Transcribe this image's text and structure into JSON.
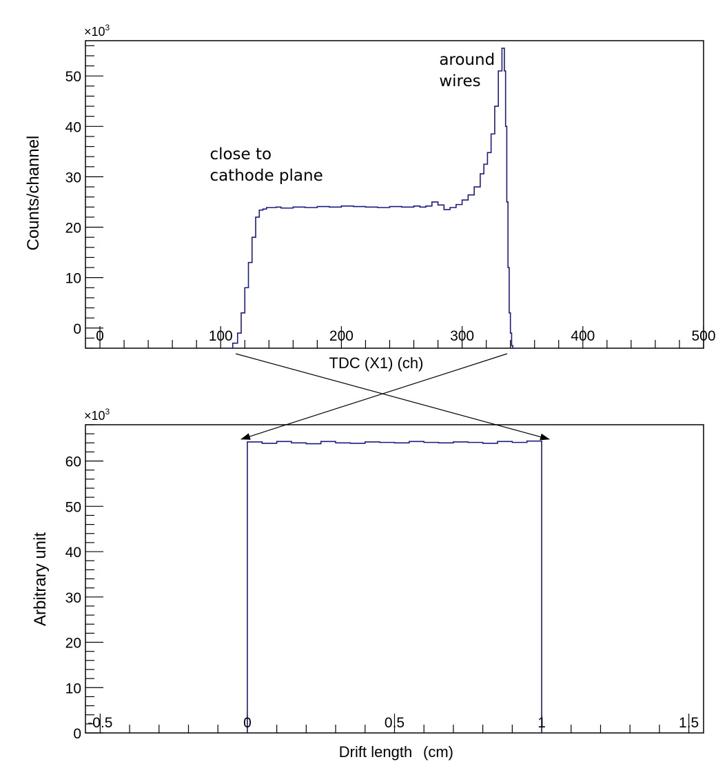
{
  "chart_data": [
    {
      "type": "histogram",
      "xlabel": "TDC (X1) (ch)",
      "ylabel": "Counts/channel",
      "y_multiplier": "×10",
      "y_multiplier_exp": "3",
      "xlim": [
        -12,
        500
      ],
      "ylim": [
        -4,
        57
      ],
      "x_ticks": [
        "0",
        "100",
        "200",
        "300",
        "400",
        "500"
      ],
      "x_tick_values": [
        0,
        100,
        200,
        300,
        400,
        500
      ],
      "y_ticks": [
        "0",
        "10",
        "20",
        "30",
        "40",
        "50"
      ],
      "y_tick_values": [
        0,
        10,
        20,
        30,
        40,
        50
      ],
      "annotations": [
        {
          "lines": [
            "close to",
            "cathode plane"
          ],
          "x": 91,
          "y": 33.5
        },
        {
          "lines": [
            "around",
            "wires"
          ],
          "x": 281,
          "y": 52.2
        }
      ],
      "series": [
        {
          "color": "#1a1a80",
          "x": [
            106,
            110,
            114,
            117,
            120,
            123,
            126,
            129,
            132,
            135,
            138,
            142,
            146,
            150,
            160,
            170,
            180,
            190,
            200,
            210,
            220,
            230,
            240,
            250,
            260,
            265,
            270,
            275,
            280,
            285,
            290,
            295,
            300,
            305,
            310,
            315,
            318,
            321,
            324,
            327,
            330,
            333,
            335,
            336,
            337,
            338,
            339,
            340,
            341,
            342,
            343,
            345
          ],
          "y": [
            -4,
            -3,
            -1,
            3,
            8,
            13,
            18,
            22,
            23.4,
            23.6,
            23.9,
            23.9,
            24.0,
            23.8,
            24.0,
            23.9,
            24.1,
            24.0,
            24.2,
            24.1,
            24.0,
            23.9,
            24.1,
            24.0,
            24.2,
            24.0,
            24.2,
            25.0,
            24.4,
            23.5,
            23.9,
            24.5,
            25.4,
            26.4,
            28.0,
            30.6,
            32.5,
            34.8,
            38.5,
            44.0,
            51.0,
            55.5,
            51.0,
            40.0,
            25.0,
            12.0,
            3.0,
            -1.0,
            -3.5,
            -4,
            -4,
            -4
          ]
        }
      ]
    },
    {
      "type": "histogram",
      "xlabel": "Drift length",
      "xlabel_unit": "(cm)",
      "ylabel": "Arbitrary unit",
      "y_multiplier": "×10",
      "y_multiplier_exp": "3",
      "xlim": [
        -0.55,
        1.55
      ],
      "ylim": [
        0,
        68
      ],
      "x_ticks": [
        "-0.5",
        "0",
        "0.5",
        "1",
        "1.5"
      ],
      "x_tick_values": [
        -0.5,
        0,
        0.5,
        1,
        1.5
      ],
      "y_ticks": [
        "0",
        "10",
        "20",
        "30",
        "40",
        "50",
        "60"
      ],
      "y_tick_values": [
        0,
        10,
        20,
        30,
        40,
        50,
        60
      ],
      "series": [
        {
          "color": "#1a1a80",
          "x": [
            0.0,
            0.05,
            0.1,
            0.15,
            0.2,
            0.25,
            0.3,
            0.35,
            0.4,
            0.45,
            0.5,
            0.55,
            0.6,
            0.65,
            0.7,
            0.75,
            0.8,
            0.85,
            0.9,
            0.95,
            1.0
          ],
          "y": [
            64.2,
            63.9,
            64.3,
            64.0,
            63.8,
            64.3,
            64.0,
            63.9,
            64.2,
            64.1,
            64.0,
            64.3,
            64.1,
            64.0,
            64.2,
            64.1,
            63.9,
            64.3,
            64.1,
            64.4,
            64.0
          ]
        }
      ]
    }
  ]
}
